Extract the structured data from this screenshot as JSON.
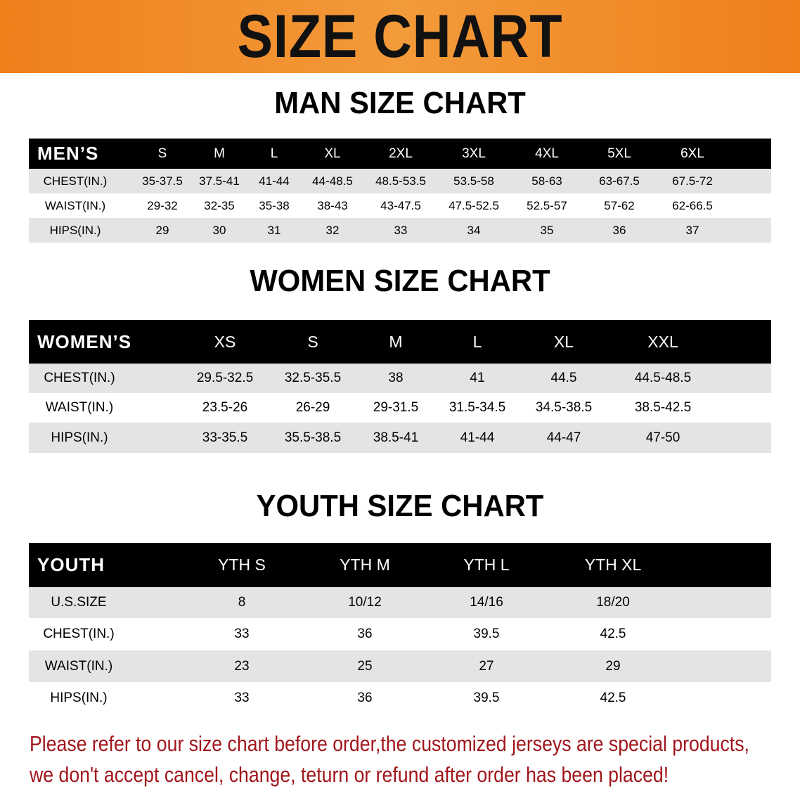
{
  "banner_title": "SIZE CHART",
  "men": {
    "title": "MAN SIZE CHART",
    "header": [
      "MEN’S",
      "S",
      "M",
      "L",
      "XL",
      "2XL",
      "3XL",
      "4XL",
      "5XL",
      "6XL"
    ],
    "rows": [
      [
        "CHEST(IN.)",
        "35-37.5",
        "37.5-41",
        "41-44",
        "44-48.5",
        "48.5-53.5",
        "53.5-58",
        "58-63",
        "63-67.5",
        "67.5-72"
      ],
      [
        "WAIST(IN.)",
        "29-32",
        "32-35",
        "35-38",
        "38-43",
        "43-47.5",
        "47.5-52.5",
        "52.5-57",
        "57-62",
        "62-66.5"
      ],
      [
        "HIPS(IN.)",
        "29",
        "30",
        "31",
        "32",
        "33",
        "34",
        "35",
        "36",
        "37"
      ]
    ]
  },
  "women": {
    "title": "WOMEN SIZE CHART",
    "header": [
      "WOMEN’S",
      "XS",
      "S",
      "M",
      "L",
      "XL",
      "XXL"
    ],
    "rows": [
      [
        "CHEST(IN.)",
        "29.5-32.5",
        "32.5-35.5",
        "38",
        "41",
        "44.5",
        "44.5-48.5"
      ],
      [
        "WAIST(IN.)",
        "23.5-26",
        "26-29",
        "29-31.5",
        "31.5-34.5",
        "34.5-38.5",
        "38.5-42.5"
      ],
      [
        "HIPS(IN.)",
        "33-35.5",
        "35.5-38.5",
        "38.5-41",
        "41-44",
        "44-47",
        "47-50"
      ]
    ]
  },
  "youth": {
    "title": "YOUTH SIZE CHART",
    "header": [
      "YOUTH",
      "YTH S",
      "YTH M",
      "YTH L",
      "YTH XL"
    ],
    "rows": [
      [
        "U.S.SIZE",
        "8",
        "10/12",
        "14/16",
        "18/20"
      ],
      [
        "CHEST(IN.)",
        "33",
        "36",
        "39.5",
        "42.5"
      ],
      [
        "WAIST(IN.)",
        "23",
        "25",
        "27",
        "29"
      ],
      [
        "HIPS(IN.)",
        "33",
        "36",
        "39.5",
        "42.5"
      ]
    ]
  },
  "note": {
    "line1": "Please refer to our size chart before order,the customized jerseys are special products,",
    "line2": "we don't accept cancel, change, teturn or refund after order has been placed!"
  },
  "colors": {
    "banner": "#ee7f1a",
    "note": "#a1161c",
    "header_bg": "#000000",
    "row_alt": "#e4e4e6"
  }
}
